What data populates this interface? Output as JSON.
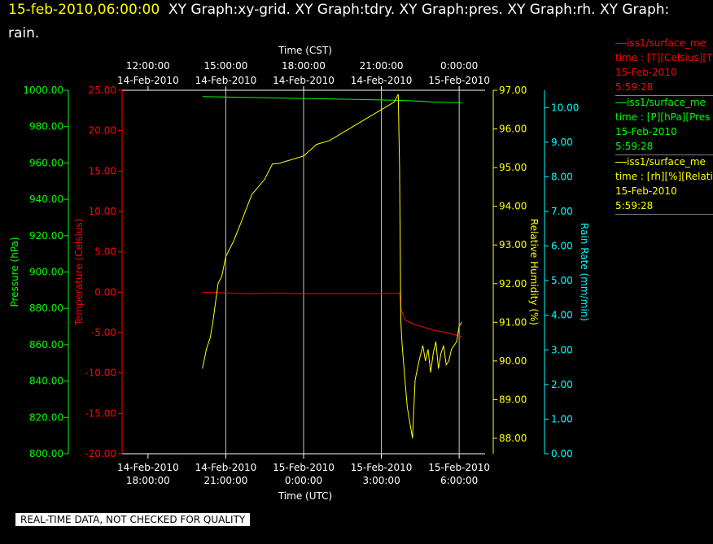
{
  "header": {
    "timestamp": "15-feb-2010,06:00:00",
    "line1_rest": "XY Graph:xy-grid.  XY Graph:tdry.  XY Graph:pres.  XY Graph:rh.  XY Graph:",
    "line2": "rain."
  },
  "colors": {
    "background": "#000000",
    "temperature": "#ff0000",
    "pressure": "#00ff00",
    "humidity": "#ffff00",
    "rain": "#00ffff",
    "grid": "#ffffff",
    "title_timestamp": "#ffff00"
  },
  "legend": [
    {
      "line1": "iss1/surface_me",
      "line2": "time : [T][Celsius][T",
      "line3": "15-Feb-2010",
      "line4": "5:59:28",
      "color": "#ff0000"
    },
    {
      "line1": "iss1/surface_me",
      "line2": "time : [P][hPa][Pres",
      "line3": "15-Feb-2010",
      "line4": "5:59:28",
      "color": "#00ff00"
    },
    {
      "line1": "iss1/surface_me",
      "line2": "time : [rh][%][Relati",
      "line3": "15-Feb-2010",
      "line4": "5:59:28",
      "color": "#ffff00"
    }
  ],
  "disclaimer": "REAL-TIME DATA, NOT CHECKED FOR QUALITY",
  "chart_data": {
    "type": "line",
    "x_label_bottom": "Time (UTC)",
    "x_label_top": "Time (CST)",
    "x_range_utc": [
      "14-Feb-2010 17:00",
      "15-Feb-2010 07:00"
    ],
    "bottom_ticks": [
      {
        "t": 1,
        "date": "14-Feb-2010",
        "time": "18:00:00"
      },
      {
        "t": 4,
        "date": "14-Feb-2010",
        "time": "21:00:00"
      },
      {
        "t": 7,
        "date": "15-Feb-2010",
        "time": "0:00:00"
      },
      {
        "t": 10,
        "date": "15-Feb-2010",
        "time": "3:00:00"
      },
      {
        "t": 13,
        "date": "15-Feb-2010",
        "time": "6:00:00"
      }
    ],
    "top_ticks": [
      {
        "t": -1,
        "time": "12:00:00",
        "date": "14-Feb-2010"
      },
      {
        "t": 2,
        "time": "15:00:00",
        "date": "14-Feb-2010"
      },
      {
        "t": 5,
        "time": "18:00:00",
        "date": "14-Feb-2010"
      },
      {
        "t": 8,
        "time": "21:00:00",
        "date": "14-Feb-2010"
      },
      {
        "t": 11,
        "time": "0:00:00",
        "date": "15-Feb-2010"
      }
    ],
    "axes": {
      "pressure": {
        "label": "Pressure (hPa)",
        "range": [
          800,
          1000
        ],
        "ticks": [
          "800.00",
          "820.00",
          "840.00",
          "860.00",
          "880.00",
          "900.00",
          "920.00",
          "940.00",
          "960.00",
          "980.00",
          "1000.00"
        ]
      },
      "temperature": {
        "label": "Temperature (Celsius)",
        "range": [
          -20,
          25
        ],
        "ticks": [
          "-20.00",
          "-15.00",
          "-10.00",
          "-5.00",
          "0.00",
          "5.00",
          "10.00",
          "15.00",
          "20.00",
          "25.00"
        ]
      },
      "humidity": {
        "label": "Relative Humidity (%)",
        "range": [
          87.6,
          97
        ],
        "ticks": [
          "88.00",
          "89.00",
          "90.00",
          "91.00",
          "92.00",
          "93.00",
          "94.00",
          "95.00",
          "96.00",
          "97.00"
        ]
      },
      "rain": {
        "label": "Rain Rate (mm/min)",
        "range": [
          0,
          10.5
        ],
        "ticks": [
          "0.00",
          "1.00",
          "2.00",
          "3.00",
          "4.00",
          "5.00",
          "6.00",
          "7.00",
          "8.00",
          "9.00",
          "10.00"
        ]
      }
    },
    "series": [
      {
        "name": "iss1/surface_me",
        "axis": "pressure",
        "color": "#00ff00",
        "points": [
          [
            3.1,
            996.5
          ],
          [
            5,
            996.0
          ],
          [
            7,
            995.5
          ],
          [
            9,
            995.0
          ],
          [
            10.5,
            994.5
          ],
          [
            11.5,
            994.0
          ],
          [
            12,
            993.5
          ],
          [
            13.1,
            993.2
          ]
        ]
      },
      {
        "name": "iss1/surface_me",
        "axis": "temperature",
        "color": "#ff0000",
        "points": [
          [
            3.1,
            0.0
          ],
          [
            4,
            -0.1
          ],
          [
            5,
            -0.2
          ],
          [
            6,
            -0.1
          ],
          [
            7,
            -0.2
          ],
          [
            8,
            -0.2
          ],
          [
            9,
            -0.2
          ],
          [
            10,
            -0.2
          ],
          [
            10.7,
            -0.1
          ],
          [
            10.75,
            -2.0
          ],
          [
            10.9,
            -3.4
          ],
          [
            11.2,
            -3.9
          ],
          [
            11.6,
            -4.3
          ],
          [
            12,
            -4.7
          ],
          [
            12.5,
            -5.0
          ],
          [
            13.1,
            -5.5
          ]
        ]
      },
      {
        "name": "iss1/surface_me",
        "axis": "humidity",
        "color": "#ffff00",
        "points": [
          [
            3.1,
            89.8
          ],
          [
            3.25,
            90.3
          ],
          [
            3.4,
            90.6
          ],
          [
            3.5,
            91.0
          ],
          [
            3.6,
            91.5
          ],
          [
            3.7,
            92.0
          ],
          [
            3.85,
            92.2
          ],
          [
            4.0,
            92.7
          ],
          [
            4.3,
            93.1
          ],
          [
            4.6,
            93.6
          ],
          [
            5.0,
            94.3
          ],
          [
            5.5,
            94.7
          ],
          [
            5.8,
            95.1
          ],
          [
            6.0,
            95.1
          ],
          [
            6.5,
            95.2
          ],
          [
            7.0,
            95.3
          ],
          [
            7.5,
            95.6
          ],
          [
            8.0,
            95.7
          ],
          [
            8.5,
            95.9
          ],
          [
            9.0,
            96.1
          ],
          [
            9.5,
            96.3
          ],
          [
            10.0,
            96.5
          ],
          [
            10.5,
            96.7
          ],
          [
            10.65,
            96.9
          ],
          [
            10.7,
            95.0
          ],
          [
            10.75,
            91.0
          ],
          [
            10.8,
            90.4
          ],
          [
            10.9,
            89.6
          ],
          [
            11.0,
            88.8
          ],
          [
            11.1,
            88.4
          ],
          [
            11.2,
            88.0
          ],
          [
            11.3,
            89.5
          ],
          [
            11.45,
            90.0
          ],
          [
            11.6,
            90.4
          ],
          [
            11.7,
            90.0
          ],
          [
            11.8,
            90.3
          ],
          [
            11.9,
            89.7
          ],
          [
            12.0,
            90.2
          ],
          [
            12.1,
            90.5
          ],
          [
            12.2,
            89.8
          ],
          [
            12.3,
            90.2
          ],
          [
            12.4,
            90.4
          ],
          [
            12.5,
            89.9
          ],
          [
            12.6,
            90.0
          ],
          [
            12.7,
            90.3
          ],
          [
            12.8,
            90.4
          ],
          [
            12.9,
            90.5
          ],
          [
            13.0,
            90.9
          ],
          [
            13.1,
            91.0
          ]
        ]
      }
    ]
  }
}
